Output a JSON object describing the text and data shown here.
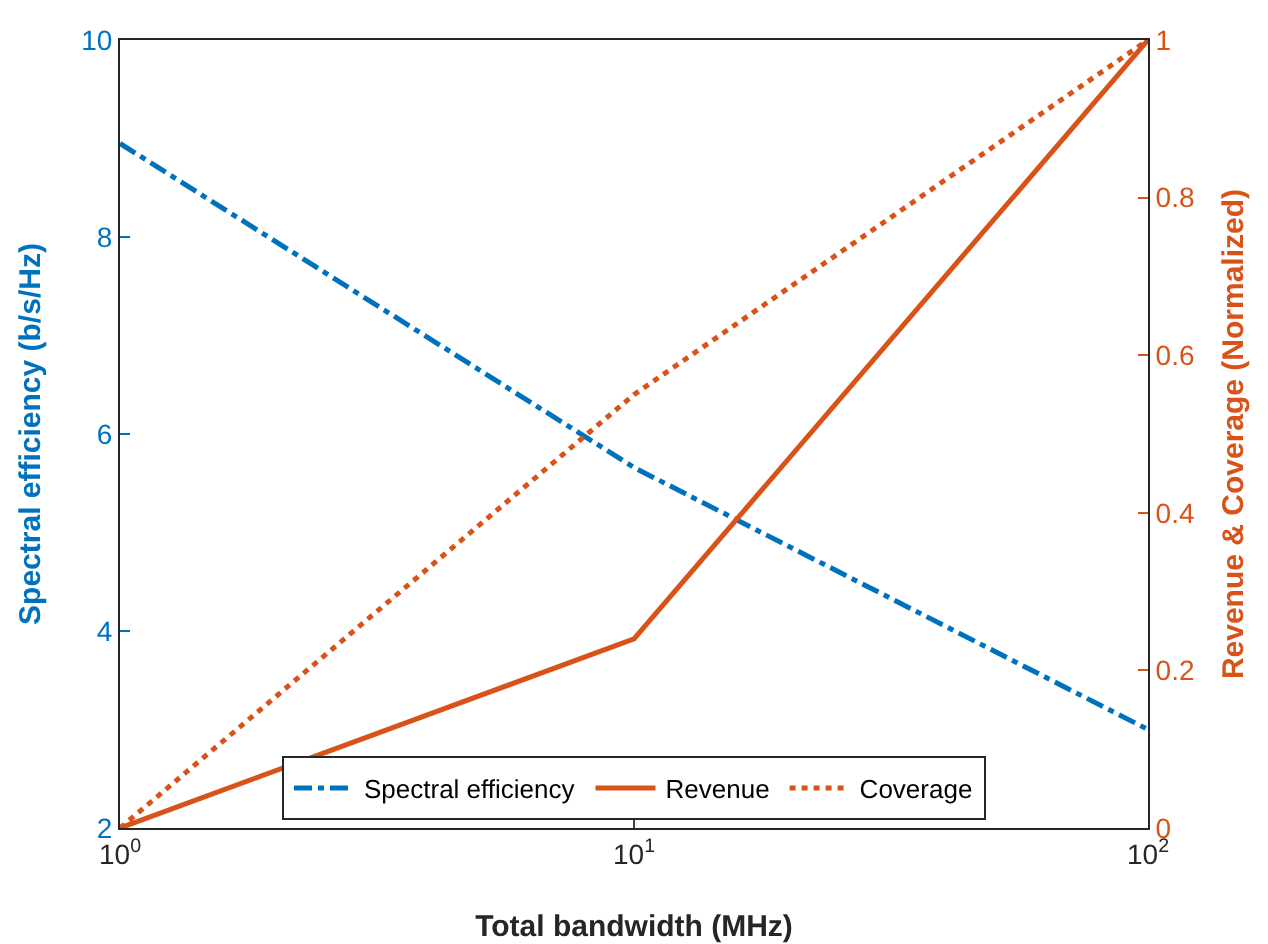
{
  "chart_data": {
    "type": "line",
    "xlabel": "Total bandwidth (MHz)",
    "ylabel": "Spectral efficiency (b/s/Hz)",
    "y2label": "Revenue & Coverage (Normalized)",
    "log": "x",
    "grid": false,
    "legend": "bottom",
    "marker": "none",
    "x": [
      1,
      10,
      100
    ],
    "xlim": [
      1,
      100
    ],
    "xticks": [
      {
        "value": 1,
        "label": "10$^{0}$"
      },
      {
        "value": 10,
        "label": "10$^{1}$"
      },
      {
        "value": 100,
        "label": "10$^{2}$"
      }
    ],
    "ylim": [
      2,
      10
    ],
    "yticks": [
      2,
      4,
      6,
      8,
      10
    ],
    "y2lim": [
      0,
      1
    ],
    "y2ticks": [
      0,
      0.2,
      0.4,
      0.6,
      0.8,
      1
    ],
    "series": [
      {
        "name": "Spectral efficiency",
        "color": "#0072bd",
        "values": [
          8.95,
          5.66,
          3.0
        ],
        "line_style": "dashdot"
      },
      {
        "name": "Revenue",
        "color": "#d95319",
        "values": [
          0,
          0.24,
          1
        ],
        "axis": "y2",
        "line_style": "solid"
      },
      {
        "name": "Coverage",
        "color": "#d95319",
        "values": [
          0,
          0.55,
          1
        ],
        "axis": "y2",
        "line_style": "dotted"
      }
    ]
  }
}
